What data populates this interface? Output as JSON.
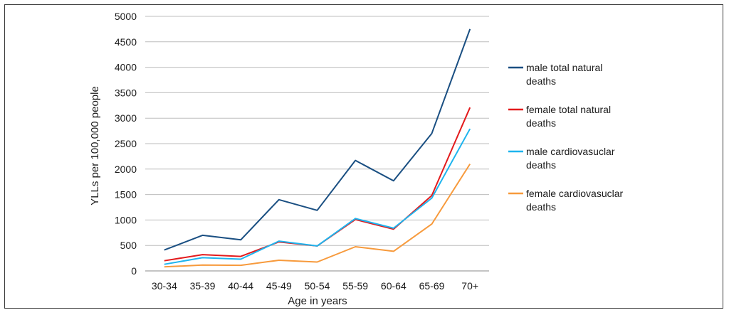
{
  "chart_data": {
    "type": "line",
    "title": "",
    "xlabel": "Age in years",
    "ylabel": "YLLs per 100,000 people",
    "ylim": [
      0,
      5000
    ],
    "yticks": [
      0,
      500,
      1000,
      1500,
      2000,
      2500,
      3000,
      3500,
      4000,
      4500,
      5000
    ],
    "grid": "horizontal",
    "legend_position": "right",
    "categories": [
      "30-34",
      "35-39",
      "40-44",
      "45-49",
      "50-54",
      "55-59",
      "60-64",
      "65-69",
      "70+"
    ],
    "series": [
      {
        "name": "male total natural deaths",
        "legend_lines": [
          "male total natural",
          "deaths"
        ],
        "color": "#1a4f82",
        "values": [
          410,
          700,
          610,
          1400,
          1190,
          2170,
          1770,
          2700,
          4750
        ]
      },
      {
        "name": "female total natural deaths",
        "legend_lines": [
          "female total natural",
          "deaths"
        ],
        "color": "#e31a1c",
        "values": [
          200,
          320,
          285,
          570,
          490,
          1010,
          820,
          1480,
          3210
        ]
      },
      {
        "name": "male cardiovasuclar deaths",
        "legend_lines": [
          "male cardiovasuclar",
          "deaths"
        ],
        "color": "#1eb4ee",
        "values": [
          130,
          260,
          230,
          585,
          490,
          1030,
          840,
          1430,
          2790
        ]
      },
      {
        "name": "female cardiovasuclar deaths",
        "legend_lines": [
          "female cardiovasuclar",
          "deaths"
        ],
        "color": "#f79a3c",
        "values": [
          80,
          115,
          110,
          210,
          175,
          475,
          385,
          920,
          2100
        ]
      }
    ]
  }
}
